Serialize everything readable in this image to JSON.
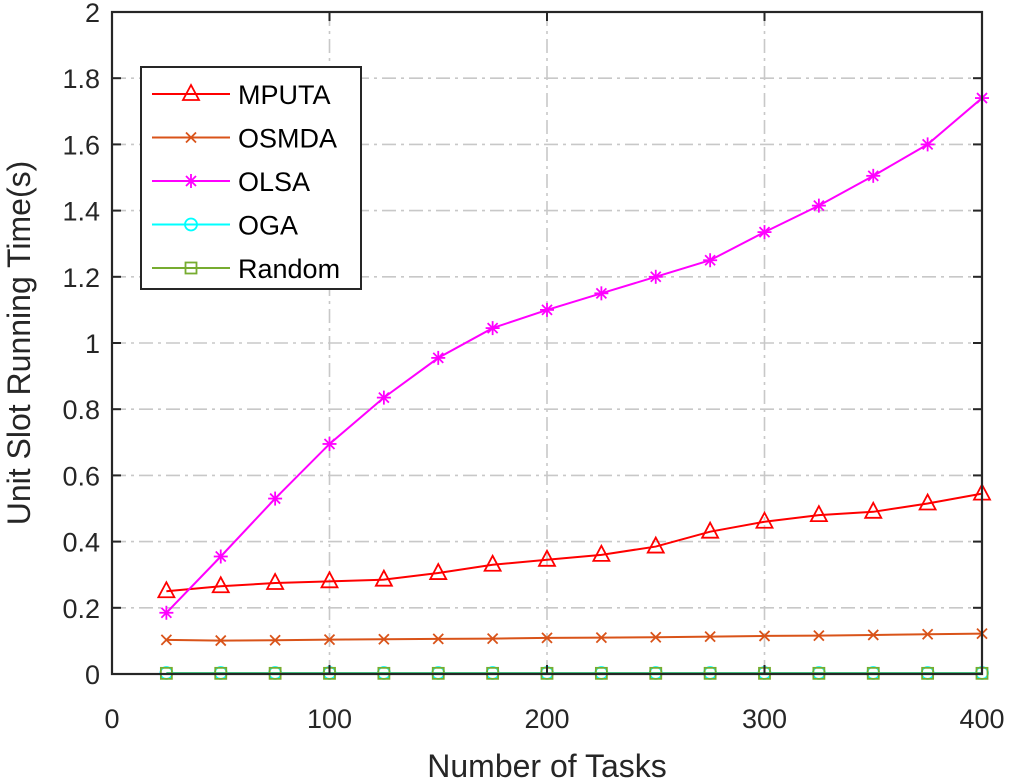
{
  "chart_data": {
    "type": "line",
    "title": "",
    "xlabel": "Number of Tasks",
    "ylabel": "Unit Slot Running Time(s)",
    "xlim": [
      0,
      400
    ],
    "ylim": [
      0,
      2
    ],
    "xticks": [
      0,
      100,
      200,
      300,
      400
    ],
    "yticks": [
      0,
      0.2,
      0.4,
      0.6,
      0.8,
      1,
      1.2,
      1.4,
      1.6,
      1.8,
      2
    ],
    "grid": true,
    "legend_position": "top-left",
    "x": [
      25,
      50,
      75,
      100,
      125,
      150,
      175,
      200,
      225,
      250,
      275,
      300,
      325,
      350,
      375,
      400
    ],
    "series": [
      {
        "name": "MPUTA",
        "marker": "triangle",
        "color": "#ff0000",
        "values": [
          0.25,
          0.265,
          0.275,
          0.28,
          0.285,
          0.305,
          0.33,
          0.345,
          0.36,
          0.385,
          0.43,
          0.46,
          0.48,
          0.49,
          0.515,
          0.545
        ]
      },
      {
        "name": "OSMDA",
        "marker": "x",
        "color": "#d95319",
        "values": [
          0.103,
          0.101,
          0.102,
          0.104,
          0.105,
          0.106,
          0.107,
          0.109,
          0.11,
          0.111,
          0.113,
          0.115,
          0.116,
          0.118,
          0.12,
          0.122
        ]
      },
      {
        "name": "OLSA",
        "marker": "asterisk",
        "color": "#ff00ff",
        "values": [
          0.185,
          0.355,
          0.53,
          0.695,
          0.835,
          0.955,
          1.045,
          1.1,
          1.15,
          1.2,
          1.25,
          1.335,
          1.415,
          1.505,
          1.6,
          1.74
        ]
      },
      {
        "name": "OGA",
        "marker": "circle",
        "color": "#00ffff",
        "values": [
          0.003,
          0.003,
          0.003,
          0.003,
          0.003,
          0.003,
          0.003,
          0.003,
          0.003,
          0.003,
          0.003,
          0.003,
          0.003,
          0.003,
          0.003,
          0.003
        ]
      },
      {
        "name": "Random",
        "marker": "square",
        "color": "#77ac30",
        "values": [
          0.002,
          0.002,
          0.002,
          0.002,
          0.002,
          0.002,
          0.002,
          0.002,
          0.002,
          0.002,
          0.002,
          0.002,
          0.002,
          0.002,
          0.002,
          0.002
        ]
      }
    ]
  }
}
